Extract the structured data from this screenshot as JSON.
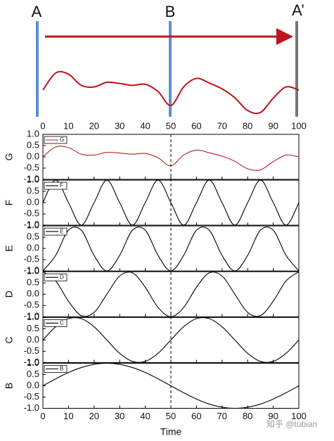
{
  "diagram": {
    "labels": [
      "A",
      "B",
      "A’"
    ]
  },
  "x_label": "Time",
  "watermark": "知乎 @tubian",
  "chart_data": [
    {
      "type": "line",
      "ylabel": "G",
      "series": [
        {
          "name": "G",
          "color": "#b22222",
          "values": [
            0,
            0.44,
            0.41,
            0.12,
            0.08,
            0.2,
            0.17,
            0.12,
            0.15,
            -0.04,
            -0.4,
            0.08,
            0.3,
            0.18,
            0.03,
            -0.2,
            -0.53,
            -0.58,
            -0.21,
            0.08,
            0
          ]
        }
      ],
      "x": [
        0,
        5,
        10,
        15,
        20,
        25,
        30,
        35,
        40,
        45,
        50,
        55,
        60,
        65,
        70,
        75,
        80,
        85,
        90,
        95,
        100
      ],
      "xlim": [
        0,
        100
      ],
      "xticks": [
        0,
        10,
        20,
        30,
        40,
        50,
        60,
        70,
        80,
        90,
        100
      ],
      "ylim": [
        -1,
        1
      ],
      "yticks": [
        {
          "value": -1,
          "label": "-1.0"
        },
        {
          "value": -0.5,
          "label": "-0.5"
        },
        {
          "value": 0,
          "label": "0.0"
        },
        {
          "value": 0.5,
          "label": "0.5"
        },
        {
          "value": 1,
          "label": "1.0"
        }
      ]
    },
    {
      "type": "line",
      "ylabel": "F",
      "series": [
        {
          "name": "F",
          "color": "#000000",
          "values": [
            0,
            1,
            0,
            -1,
            0,
            1,
            0,
            -1,
            0,
            1,
            0,
            -1,
            0,
            1,
            0,
            -1,
            0,
            1,
            0,
            -1,
            0
          ]
        }
      ],
      "x": [
        0,
        5,
        10,
        15,
        20,
        25,
        30,
        35,
        40,
        45,
        50,
        55,
        60,
        65,
        70,
        75,
        80,
        85,
        90,
        95,
        100
      ],
      "xlim": [
        0,
        100
      ],
      "xticks": [
        0,
        10,
        20,
        30,
        40,
        50,
        60,
        70,
        80,
        90,
        100
      ],
      "ylim": [
        -1,
        1
      ],
      "yticks": [
        {
          "value": -1,
          "label": "-1.0"
        },
        {
          "value": -0.5,
          "label": "-0.5"
        },
        {
          "value": 0,
          "label": "0.0"
        },
        {
          "value": 0.5,
          "label": "0.5"
        },
        {
          "value": 1,
          "label": "1.0"
        }
      ]
    },
    {
      "type": "line",
      "ylabel": "E",
      "series": [
        {
          "name": "E",
          "color": "#000000",
          "values": [
            -1,
            -0.31,
            0.81,
            0.81,
            -0.31,
            -1,
            -0.31,
            0.81,
            0.81,
            -0.31,
            -1,
            -0.31,
            0.81,
            0.81,
            -0.31,
            -1,
            -0.31,
            0.81,
            0.81,
            -0.31,
            -1
          ]
        }
      ],
      "x": [
        0,
        5,
        10,
        15,
        20,
        25,
        30,
        35,
        40,
        45,
        50,
        55,
        60,
        65,
        70,
        75,
        80,
        85,
        90,
        95,
        100
      ],
      "xlim": [
        0,
        100
      ],
      "xticks": [
        0,
        10,
        20,
        30,
        40,
        50,
        60,
        70,
        80,
        90,
        100
      ],
      "ylim": [
        -1,
        1
      ],
      "yticks": [
        {
          "value": -1,
          "label": "-1.0"
        },
        {
          "value": -0.5,
          "label": "-0.5"
        },
        {
          "value": 0,
          "label": "0.0"
        },
        {
          "value": 0.5,
          "label": "0.5"
        },
        {
          "value": 1,
          "label": "1.0"
        }
      ]
    },
    {
      "type": "line",
      "ylabel": "D",
      "series": [
        {
          "name": "D",
          "color": "#000000",
          "values": [
            1,
            0.59,
            -0.31,
            -0.95,
            -0.81,
            0,
            0.81,
            0.95,
            0.31,
            -0.59,
            -1,
            -0.59,
            0.31,
            0.95,
            0.81,
            0,
            -0.81,
            -0.95,
            -0.31,
            0.59,
            1
          ]
        }
      ],
      "x": [
        0,
        5,
        10,
        15,
        20,
        25,
        30,
        35,
        40,
        45,
        50,
        55,
        60,
        65,
        70,
        75,
        80,
        85,
        90,
        95,
        100
      ],
      "xlim": [
        0,
        100
      ],
      "xticks": [
        0,
        10,
        20,
        30,
        40,
        50,
        60,
        70,
        80,
        90,
        100
      ],
      "ylim": [
        -1,
        1
      ],
      "yticks": [
        {
          "value": -1,
          "label": "-1.0"
        },
        {
          "value": -0.5,
          "label": "-0.5"
        },
        {
          "value": 0,
          "label": "0.0"
        },
        {
          "value": 0.5,
          "label": "0.5"
        },
        {
          "value": 1,
          "label": "1.0"
        }
      ]
    },
    {
      "type": "line",
      "ylabel": "C",
      "series": [
        {
          "name": "C",
          "color": "#000000",
          "values": [
            0,
            0.59,
            0.95,
            0.95,
            0.59,
            0,
            -0.59,
            -0.95,
            -0.95,
            -0.59,
            0,
            0.59,
            0.95,
            0.95,
            0.59,
            0,
            -0.59,
            -0.95,
            -0.95,
            -0.59,
            0
          ]
        }
      ],
      "x": [
        0,
        5,
        10,
        15,
        20,
        25,
        30,
        35,
        40,
        45,
        50,
        55,
        60,
        65,
        70,
        75,
        80,
        85,
        90,
        95,
        100
      ],
      "xlim": [
        0,
        100
      ],
      "xticks": [
        0,
        10,
        20,
        30,
        40,
        50,
        60,
        70,
        80,
        90,
        100
      ],
      "ylim": [
        -1,
        1
      ],
      "yticks": [
        {
          "value": -1,
          "label": "-1.0"
        },
        {
          "value": -0.5,
          "label": "-0.5"
        },
        {
          "value": 0,
          "label": "0.0"
        },
        {
          "value": 0.5,
          "label": "0.5"
        },
        {
          "value": 1,
          "label": "1.0"
        }
      ]
    },
    {
      "type": "line",
      "ylabel": "B",
      "series": [
        {
          "name": "B",
          "color": "#000000",
          "values": [
            0,
            0.31,
            0.59,
            0.81,
            0.95,
            1,
            0.95,
            0.81,
            0.59,
            0.31,
            0,
            -0.31,
            -0.59,
            -0.81,
            -0.95,
            -1,
            -0.95,
            -0.81,
            -0.59,
            -0.31,
            0
          ]
        }
      ],
      "x": [
        0,
        5,
        10,
        15,
        20,
        25,
        30,
        35,
        40,
        45,
        50,
        55,
        60,
        65,
        70,
        75,
        80,
        85,
        90,
        95,
        100
      ],
      "xlim": [
        0,
        100
      ],
      "xticks": [
        0,
        10,
        20,
        30,
        40,
        50,
        60,
        70,
        80,
        90,
        100
      ],
      "ylim": [
        -1,
        1
      ],
      "yticks": [
        {
          "value": -1,
          "label": "-1.0"
        },
        {
          "value": -0.5,
          "label": "-0.5"
        },
        {
          "value": 0,
          "label": "0.0"
        },
        {
          "value": 0.5,
          "label": "0.5"
        },
        {
          "value": 1,
          "label": "1.0"
        }
      ]
    }
  ]
}
